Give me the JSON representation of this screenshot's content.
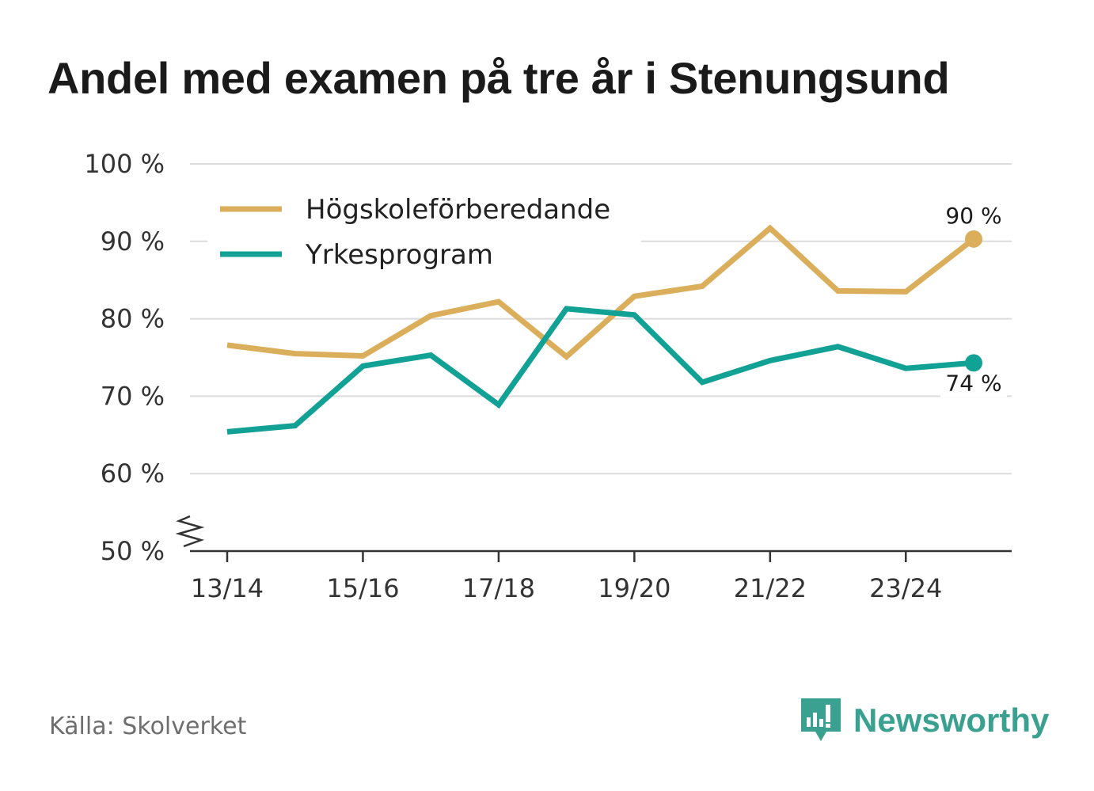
{
  "title": "Andel med examen på tre år i Stenungsund",
  "source": "Källa: Skolverket",
  "brand": {
    "name": "Newsworthy",
    "icon": "newsworthy-logo-icon",
    "color": "#3aa08f"
  },
  "chart_data": {
    "type": "line",
    "title": "Andel med examen på tre år i Stenungsund",
    "x": [
      "13/14",
      "14/15",
      "15/16",
      "16/17",
      "17/18",
      "18/19",
      "19/20",
      "20/21",
      "21/22",
      "22/23",
      "23/24",
      "24/25"
    ],
    "x_tick_labels": [
      "13/14",
      "15/16",
      "17/18",
      "19/20",
      "21/22",
      "23/24"
    ],
    "y_tick_labels": [
      "100 %",
      "90 %",
      "80 %",
      "70 %",
      "60 %",
      "50 %"
    ],
    "ylim": [
      50,
      100
    ],
    "yticks": [
      50,
      60,
      70,
      80,
      90,
      100
    ],
    "grid": true,
    "axis_break": true,
    "legend_position": "top-left",
    "series": [
      {
        "name": "Högskoleförberedande",
        "color": "#dbae5c",
        "values": [
          76.6,
          75.5,
          75.2,
          80.4,
          82.2,
          75.1,
          82.9,
          84.2,
          91.7,
          83.6,
          83.5,
          90.3
        ],
        "end_label": "90 %"
      },
      {
        "name": "Yrkesprogram",
        "color": "#12a195",
        "values": [
          65.4,
          66.2,
          73.9,
          75.3,
          68.9,
          81.3,
          80.5,
          71.8,
          74.6,
          76.4,
          73.6,
          74.3
        ],
        "end_label": "74 %"
      }
    ]
  }
}
